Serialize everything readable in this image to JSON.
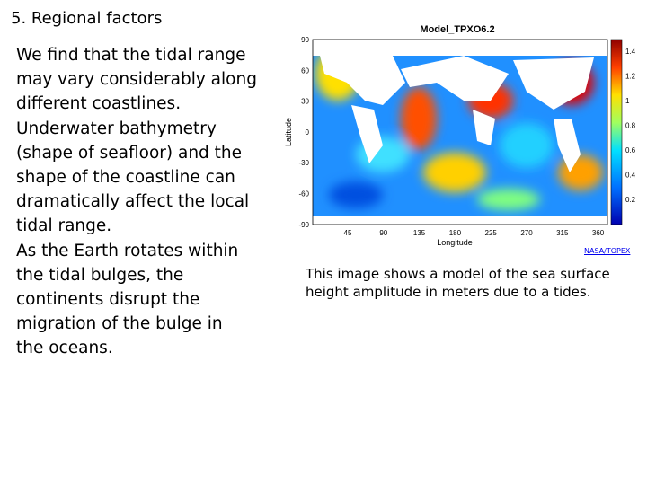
{
  "slide": {
    "title": "5. Regional factors",
    "body_lines": [
      "We find that the tidal range",
      "may vary considerably along",
      "different coastlines.",
      "Underwater bathymetry",
      "(shape of seafloor) and the",
      "shape of the coastline can",
      "dramatically affect the local",
      "tidal range.",
      "As the Earth rotates within",
      "the tidal bulges, the",
      "continents disrupt the",
      "migration of the bulge in",
      "the oceans."
    ],
    "figure": {
      "title": "Model_TPXO6.2",
      "x_label": "Longitude",
      "y_label": "Latitude",
      "x_ticks": [
        "45",
        "90",
        "135",
        "180",
        "225",
        "270",
        "315",
        "360"
      ],
      "y_ticks": [
        "90",
        "60",
        "30",
        "0",
        "-30",
        "-60",
        "-90"
      ],
      "colorbar_ticks": [
        "1.4",
        "1.2",
        "1",
        "0.8",
        "0.6",
        "0.4",
        "0.2"
      ],
      "credit": "NASA/TOPEX"
    },
    "caption_lines": [
      "This image shows a model of the sea surface",
      "height amplitude in meters due to a tides."
    ]
  }
}
